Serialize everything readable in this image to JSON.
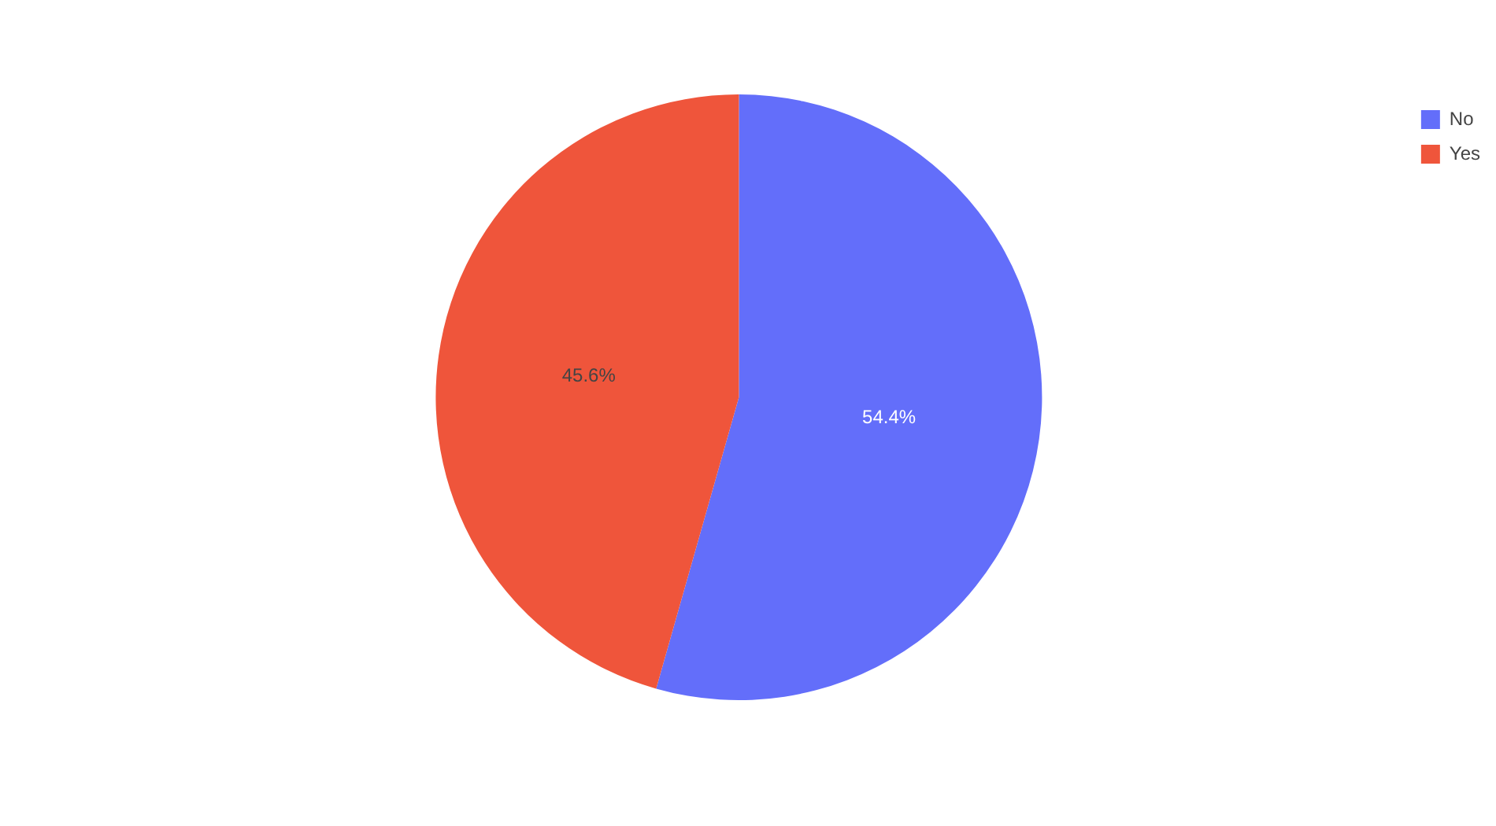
{
  "chart_data": {
    "type": "pie",
    "categories": [
      "No",
      "Yes"
    ],
    "values": [
      54.4,
      45.6
    ],
    "colors": [
      "#636efa",
      "#ef553b"
    ],
    "value_labels": [
      "54.4%",
      "45.6%"
    ],
    "legend": "top right"
  }
}
